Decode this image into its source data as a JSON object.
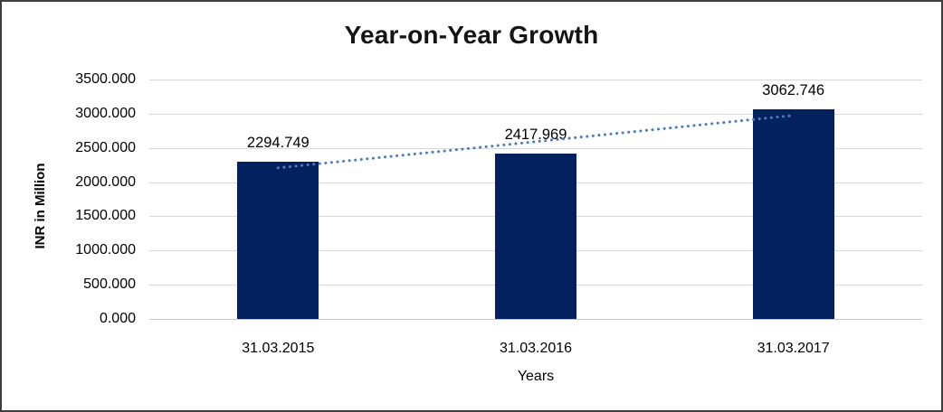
{
  "title": "Year-on-Year Growth",
  "colors": {
    "bar": "#02215e",
    "trendline": "#4a7ebb",
    "gridline": "#d9d9d9",
    "text": "#000000",
    "frame_border": "#3e3e3e"
  },
  "chart_data": {
    "type": "bar",
    "title": "Year-on-Year Growth",
    "categories": [
      "31.03.2015",
      "31.03.2016",
      "31.03.2017"
    ],
    "values": [
      2294.749,
      2417.969,
      3062.746
    ],
    "value_labels": [
      "2294.749",
      "2417.969",
      "3062.746"
    ],
    "series_name": "INR in Million",
    "xlabel": "Years",
    "ylabel": "INR in Million",
    "ylim": [
      0,
      3500
    ],
    "ytick_step": 500,
    "ytick_labels_top_to_bottom": [
      "3500.000",
      "3000.000",
      "2500.000",
      "2000.000",
      "1500.000",
      "1000.000",
      "500.000",
      "0.000"
    ],
    "grid": true,
    "legend": false,
    "bar_color": "#02215e",
    "trendline": {
      "style": "dotted",
      "color": "#4a7ebb",
      "fitted_values": [
        2207.75,
        2591.82,
        2975.89
      ]
    }
  }
}
